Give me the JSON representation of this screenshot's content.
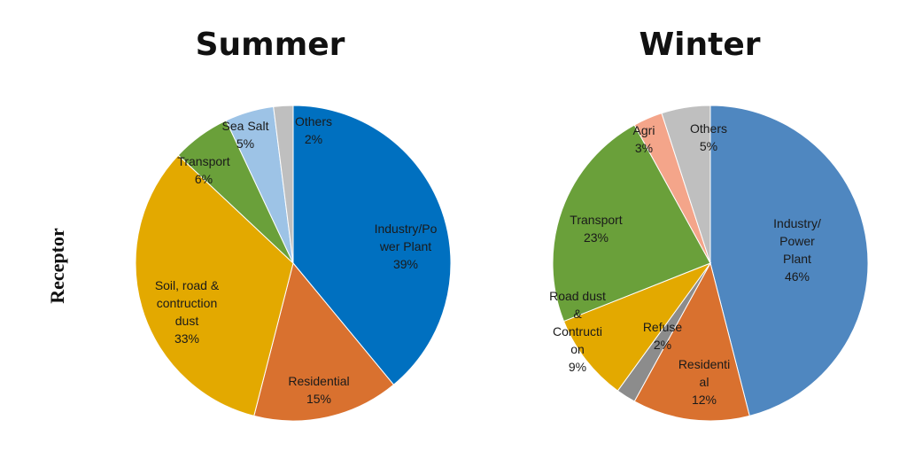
{
  "side_label": "Receptor",
  "chart_data": [
    {
      "type": "pie",
      "title": "Summer",
      "start_angle_deg": 0,
      "direction": "clockwise",
      "slices": [
        {
          "name": "Industry/Power Plant",
          "label_lines": [
            "Industry/Po",
            "wer Plant",
            "39%"
          ],
          "value": 39,
          "color": "#0070c0"
        },
        {
          "name": "Residential",
          "label_lines": [
            "Residential",
            "15%"
          ],
          "value": 15,
          "color": "#d9712f"
        },
        {
          "name": "Soil, road & contruction dust",
          "label_lines": [
            "Soil, road &",
            "contruction",
            "dust",
            "33%"
          ],
          "value": 33,
          "color": "#e3a900"
        },
        {
          "name": "Transport",
          "label_lines": [
            "Transport",
            "6%"
          ],
          "value": 6,
          "color": "#6aa03a"
        },
        {
          "name": "Sea Salt",
          "label_lines": [
            "Sea Salt",
            "5%"
          ],
          "value": 5,
          "color": "#9dc3e6"
        },
        {
          "name": "Others",
          "label_lines": [
            "Others",
            "2%"
          ],
          "value": 2,
          "color": "#bfbfbf"
        }
      ]
    },
    {
      "type": "pie",
      "title": "Winter",
      "start_angle_deg": 0,
      "direction": "clockwise",
      "slices": [
        {
          "name": "Industry/Power Plant",
          "label_lines": [
            "Industry/",
            "Power",
            "Plant",
            "46%"
          ],
          "value": 46,
          "color": "#4f87c0"
        },
        {
          "name": "Residential",
          "label_lines": [
            "Residenti",
            "al",
            "12%"
          ],
          "value": 12,
          "color": "#d9712f"
        },
        {
          "name": "Refuse",
          "label_lines": [
            "Refuse",
            "2%"
          ],
          "value": 2,
          "color": "#8c8c8c"
        },
        {
          "name": "Road dust & Contruction",
          "label_lines": [
            "Road dust",
            "&",
            "Contructi",
            "on",
            "9%"
          ],
          "value": 9,
          "color": "#e3a900"
        },
        {
          "name": "Transport",
          "label_lines": [
            "Transport",
            "23%"
          ],
          "value": 23,
          "color": "#6aa03a"
        },
        {
          "name": "Agri",
          "label_lines": [
            "Agri",
            "3%"
          ],
          "value": 3,
          "color": "#f4a58a"
        },
        {
          "name": "Others",
          "label_lines": [
            "Others",
            "5%"
          ],
          "value": 5,
          "color": "#bfbfbf"
        }
      ]
    }
  ]
}
